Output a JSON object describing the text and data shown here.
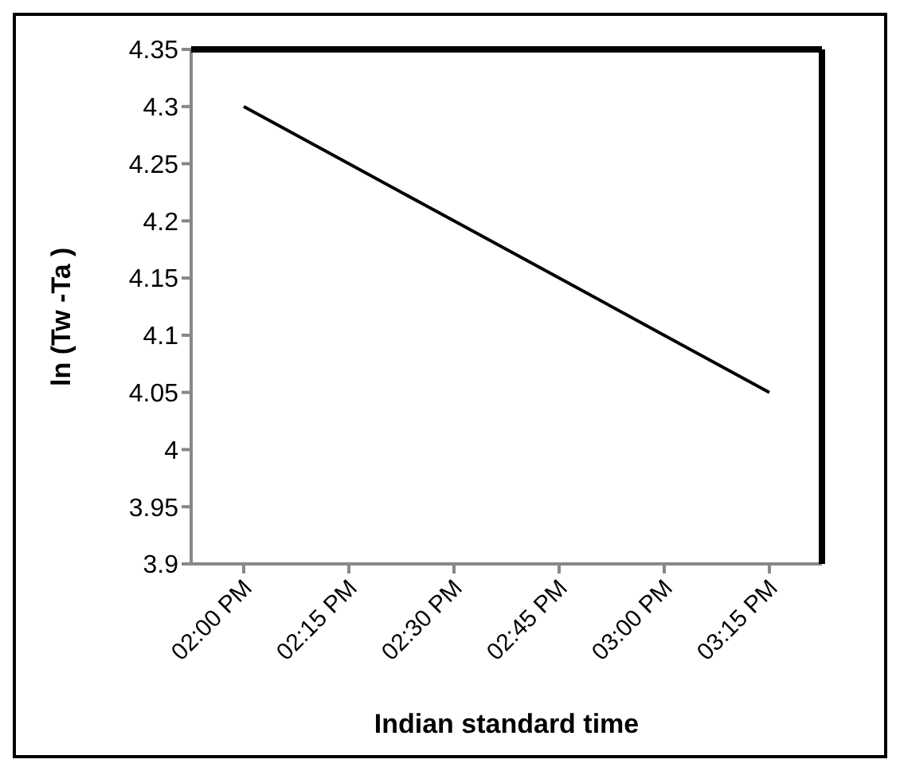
{
  "chart_data": {
    "type": "line",
    "xlabel": "Indian standard time",
    "ylabel": "ln (Tw -Ta )",
    "categories": [
      "02:00 PM",
      "02:15 PM",
      "02:30 PM",
      "02:45 PM",
      "03:00 PM",
      "03:15 PM"
    ],
    "series": [
      {
        "color": "#000000",
        "values": [
          4.3,
          4.25,
          4.2,
          4.15,
          4.1,
          4.05
        ]
      }
    ],
    "ylim": [
      3.9,
      4.35
    ],
    "yticks": [
      3.9,
      3.95,
      4,
      4.05,
      4.1,
      4.15,
      4.2,
      4.25,
      4.3,
      4.35
    ],
    "grid": false,
    "legend": false,
    "marker": "none",
    "line_style": "solid"
  }
}
